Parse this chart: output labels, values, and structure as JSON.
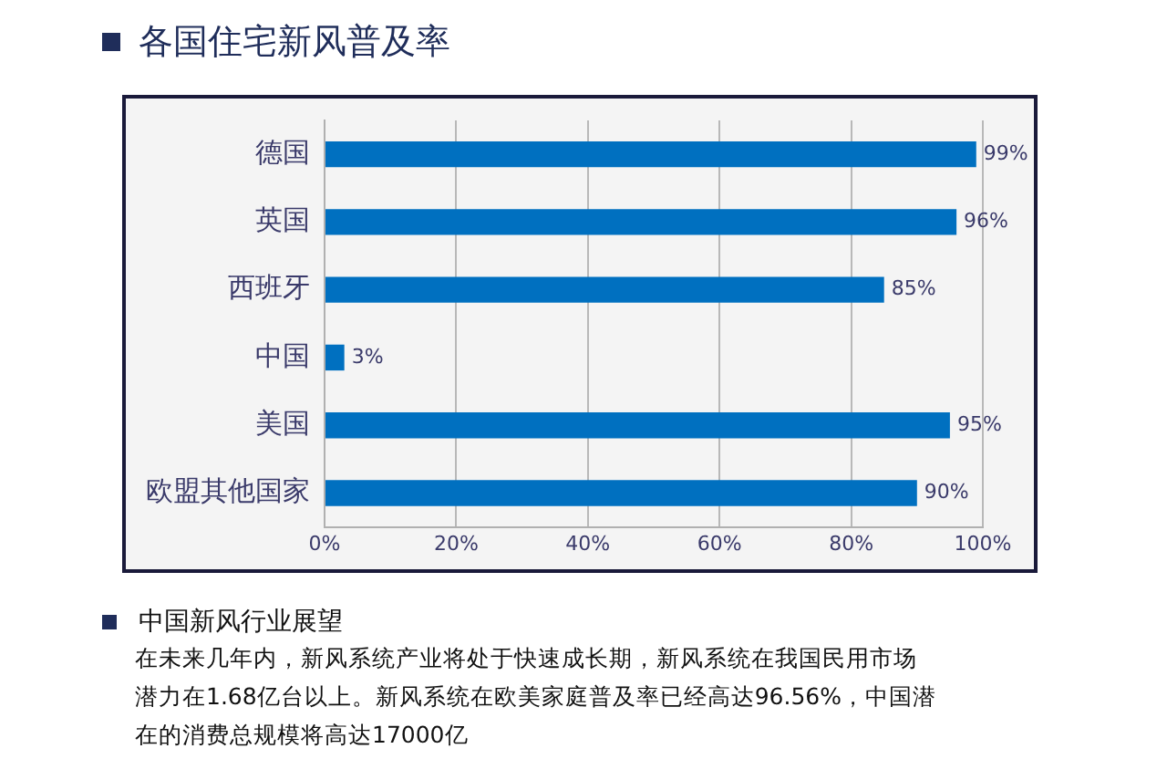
{
  "chart_data": {
    "type": "bar",
    "orientation": "horizontal",
    "title": "各国住宅新风普及率",
    "categories": [
      "德国",
      "英国",
      "西班牙",
      "中国",
      "美国",
      "欧盟其他国家"
    ],
    "values": [
      99,
      96,
      85,
      3,
      95,
      90
    ],
    "color": "#0070c0",
    "value_labels": [
      "99%",
      "96%",
      "85%",
      "3%",
      "95%",
      "90%"
    ],
    "xlim": [
      0,
      100
    ],
    "xticks": [
      {
        "value": 0,
        "label": "0%"
      },
      {
        "value": 20,
        "label": "20%"
      },
      {
        "value": 40,
        "label": "40%"
      },
      {
        "value": 60,
        "label": "60%"
      },
      {
        "value": 80,
        "label": "80%"
      },
      {
        "value": 100,
        "label": "100%"
      }
    ],
    "grid": "x",
    "legend": false,
    "annotations": [
      "中国新风行业展望",
      "在未来几年内，新风系统产业将处于快速成长期，新风系统在我国民用市场潜力在1.68亿台以上。新风系统在欧美家庭普及率已经高达96.56%，中国潜在的消费总规模将高达17000亿"
    ]
  }
}
